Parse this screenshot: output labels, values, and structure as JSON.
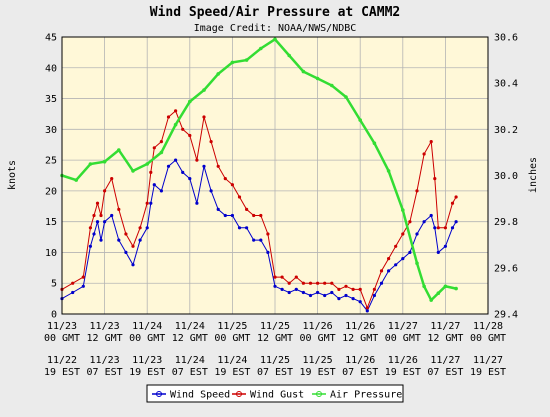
{
  "chart_data": {
    "type": "line",
    "title": "Wind Speed/Air Pressure at CAMM2",
    "subtitle": "Image Credit: NOAA/NWS/NDBC",
    "ylabel_left": "knots",
    "ylabel_right": "inches",
    "ylim_left": [
      0,
      45
    ],
    "ylim_right": [
      29.4,
      30.6
    ],
    "y_ticks_left": [
      "0",
      "5",
      "10",
      "15",
      "20",
      "25",
      "30",
      "35",
      "40",
      "45"
    ],
    "y_ticks_right": [
      "29.4",
      "29.6",
      "29.8",
      "30.0",
      "30.2",
      "30.4",
      "30.6"
    ],
    "x_ticks": [
      {
        "date": "11/23",
        "gmt": "00 GMT",
        "local_date": "11/22",
        "local": "19 EST"
      },
      {
        "date": "11/23",
        "gmt": "12 GMT",
        "local_date": "11/23",
        "local": "07 EST"
      },
      {
        "date": "11/24",
        "gmt": "00 GMT",
        "local_date": "11/23",
        "local": "19 EST"
      },
      {
        "date": "11/24",
        "gmt": "12 GMT",
        "local_date": "11/24",
        "local": "07 EST"
      },
      {
        "date": "11/25",
        "gmt": "00 GMT",
        "local_date": "11/24",
        "local": "19 EST"
      },
      {
        "date": "11/25",
        "gmt": "12 GMT",
        "local_date": "11/25",
        "local": "07 EST"
      },
      {
        "date": "11/26",
        "gmt": "00 GMT",
        "local_date": "11/25",
        "local": "19 EST"
      },
      {
        "date": "11/26",
        "gmt": "12 GMT",
        "local_date": "11/26",
        "local": "07 EST"
      },
      {
        "date": "11/27",
        "gmt": "00 GMT",
        "local_date": "11/26",
        "local": "19 EST"
      },
      {
        "date": "11/27",
        "gmt": "12 GMT",
        "local_date": "11/27",
        "local": "07 EST"
      },
      {
        "date": "11/28",
        "gmt": "00 GMT",
        "local_date": "11/27",
        "local": "19 EST"
      }
    ],
    "grid": true,
    "legend_position": "bottom",
    "series": [
      {
        "name": "Wind Speed",
        "axis": "left",
        "color": "#0000cc",
        "points": [
          [
            "11/23 00:00",
            2.5
          ],
          [
            "11/23 03:00",
            3.5
          ],
          [
            "11/23 06:00",
            4.5
          ],
          [
            "11/23 08:00",
            11
          ],
          [
            "11/23 09:00",
            13
          ],
          [
            "11/23 10:00",
            15
          ],
          [
            "11/23 11:00",
            12
          ],
          [
            "11/23 12:00",
            15
          ],
          [
            "11/23 14:00",
            16
          ],
          [
            "11/23 16:00",
            12
          ],
          [
            "11/23 18:00",
            10
          ],
          [
            "11/23 20:00",
            8
          ],
          [
            "11/23 22:00",
            12
          ],
          [
            "11/24 00:00",
            14
          ],
          [
            "11/24 01:00",
            18
          ],
          [
            "11/24 02:00",
            21
          ],
          [
            "11/24 04:00",
            20
          ],
          [
            "11/24 06:00",
            24
          ],
          [
            "11/24 08:00",
            25
          ],
          [
            "11/24 10:00",
            23
          ],
          [
            "11/24 12:00",
            22
          ],
          [
            "11/24 14:00",
            18
          ],
          [
            "11/24 16:00",
            24
          ],
          [
            "11/24 18:00",
            20
          ],
          [
            "11/24 20:00",
            17
          ],
          [
            "11/24 22:00",
            16
          ],
          [
            "11/25 00:00",
            16
          ],
          [
            "11/25 02:00",
            14
          ],
          [
            "11/25 04:00",
            14
          ],
          [
            "11/25 06:00",
            12
          ],
          [
            "11/25 08:00",
            12
          ],
          [
            "11/25 10:00",
            10
          ],
          [
            "11/25 12:00",
            4.5
          ],
          [
            "11/25 14:00",
            4
          ],
          [
            "11/25 16:00",
            3.5
          ],
          [
            "11/25 18:00",
            4
          ],
          [
            "11/25 20:00",
            3.5
          ],
          [
            "11/25 22:00",
            3
          ],
          [
            "11/26 00:00",
            3.5
          ],
          [
            "11/26 02:00",
            3
          ],
          [
            "11/26 04:00",
            3.5
          ],
          [
            "11/26 06:00",
            2.5
          ],
          [
            "11/26 08:00",
            3
          ],
          [
            "11/26 10:00",
            2.5
          ],
          [
            "11/26 12:00",
            2
          ],
          [
            "11/26 14:00",
            0.5
          ],
          [
            "11/26 16:00",
            3
          ],
          [
            "11/26 18:00",
            5
          ],
          [
            "11/26 20:00",
            7
          ],
          [
            "11/26 22:00",
            8
          ],
          [
            "11/27 00:00",
            9
          ],
          [
            "11/27 02:00",
            10
          ],
          [
            "11/27 04:00",
            13
          ],
          [
            "11/27 06:00",
            15
          ],
          [
            "11/27 08:00",
            16
          ],
          [
            "11/27 09:00",
            14
          ],
          [
            "11/27 10:00",
            10
          ],
          [
            "11/27 12:00",
            11
          ],
          [
            "11/27 14:00",
            14
          ],
          [
            "11/27 15:00",
            15
          ]
        ]
      },
      {
        "name": "Wind Gust",
        "axis": "left",
        "color": "#cc0000",
        "points": [
          [
            "11/23 00:00",
            4
          ],
          [
            "11/23 03:00",
            5
          ],
          [
            "11/23 06:00",
            6
          ],
          [
            "11/23 08:00",
            14
          ],
          [
            "11/23 09:00",
            16
          ],
          [
            "11/23 10:00",
            18
          ],
          [
            "11/23 11:00",
            16
          ],
          [
            "11/23 12:00",
            20
          ],
          [
            "11/23 14:00",
            22
          ],
          [
            "11/23 16:00",
            17
          ],
          [
            "11/23 18:00",
            13
          ],
          [
            "11/23 20:00",
            11
          ],
          [
            "11/23 22:00",
            14
          ],
          [
            "11/24 00:00",
            18
          ],
          [
            "11/24 01:00",
            23
          ],
          [
            "11/24 02:00",
            27
          ],
          [
            "11/24 04:00",
            28
          ],
          [
            "11/24 06:00",
            32
          ],
          [
            "11/24 08:00",
            33
          ],
          [
            "11/24 10:00",
            30
          ],
          [
            "11/24 12:00",
            29
          ],
          [
            "11/24 14:00",
            25
          ],
          [
            "11/24 16:00",
            32
          ],
          [
            "11/24 18:00",
            28
          ],
          [
            "11/24 20:00",
            24
          ],
          [
            "11/24 22:00",
            22
          ],
          [
            "11/25 00:00",
            21
          ],
          [
            "11/25 02:00",
            19
          ],
          [
            "11/25 04:00",
            17
          ],
          [
            "11/25 06:00",
            16
          ],
          [
            "11/25 08:00",
            16
          ],
          [
            "11/25 10:00",
            13
          ],
          [
            "11/25 12:00",
            6
          ],
          [
            "11/25 14:00",
            6
          ],
          [
            "11/25 16:00",
            5
          ],
          [
            "11/25 18:00",
            6
          ],
          [
            "11/25 20:00",
            5
          ],
          [
            "11/25 22:00",
            5
          ],
          [
            "11/26 00:00",
            5
          ],
          [
            "11/26 02:00",
            5
          ],
          [
            "11/26 04:00",
            5
          ],
          [
            "11/26 06:00",
            4
          ],
          [
            "11/26 08:00",
            4.5
          ],
          [
            "11/26 10:00",
            4
          ],
          [
            "11/26 12:00",
            4
          ],
          [
            "11/26 14:00",
            1
          ],
          [
            "11/26 16:00",
            4
          ],
          [
            "11/26 18:00",
            7
          ],
          [
            "11/26 20:00",
            9
          ],
          [
            "11/26 22:00",
            11
          ],
          [
            "11/27 00:00",
            13
          ],
          [
            "11/27 02:00",
            15
          ],
          [
            "11/27 04:00",
            20
          ],
          [
            "11/27 06:00",
            26
          ],
          [
            "11/27 08:00",
            28
          ],
          [
            "11/27 09:00",
            22
          ],
          [
            "11/27 10:00",
            14
          ],
          [
            "11/27 12:00",
            14
          ],
          [
            "11/27 14:00",
            18
          ],
          [
            "11/27 15:00",
            19
          ]
        ]
      },
      {
        "name": "Air Pressure",
        "axis": "right",
        "color": "#33dd33",
        "points": [
          [
            "11/23 00:00",
            30.0
          ],
          [
            "11/23 04:00",
            29.98
          ],
          [
            "11/23 08:00",
            30.05
          ],
          [
            "11/23 12:00",
            30.06
          ],
          [
            "11/23 16:00",
            30.11
          ],
          [
            "11/23 20:00",
            30.02
          ],
          [
            "11/24 00:00",
            30.05
          ],
          [
            "11/24 04:00",
            30.1
          ],
          [
            "11/24 08:00",
            30.22
          ],
          [
            "11/24 12:00",
            30.32
          ],
          [
            "11/24 16:00",
            30.37
          ],
          [
            "11/24 20:00",
            30.44
          ],
          [
            "11/25 00:00",
            30.49
          ],
          [
            "11/25 04:00",
            30.5
          ],
          [
            "11/25 08:00",
            30.55
          ],
          [
            "11/25 12:00",
            30.59
          ],
          [
            "11/25 16:00",
            30.52
          ],
          [
            "11/25 20:00",
            30.45
          ],
          [
            "11/26 00:00",
            30.42
          ],
          [
            "11/26 04:00",
            30.39
          ],
          [
            "11/26 08:00",
            30.34
          ],
          [
            "11/26 12:00",
            30.24
          ],
          [
            "11/26 16:00",
            30.14
          ],
          [
            "11/26 20:00",
            30.02
          ],
          [
            "11/27 00:00",
            29.85
          ],
          [
            "11/27 04:00",
            29.62
          ],
          [
            "11/27 06:00",
            29.52
          ],
          [
            "11/27 08:00",
            29.46
          ],
          [
            "11/27 10:00",
            29.49
          ],
          [
            "11/27 12:00",
            29.52
          ],
          [
            "11/27 15:00",
            29.51
          ]
        ]
      }
    ]
  }
}
